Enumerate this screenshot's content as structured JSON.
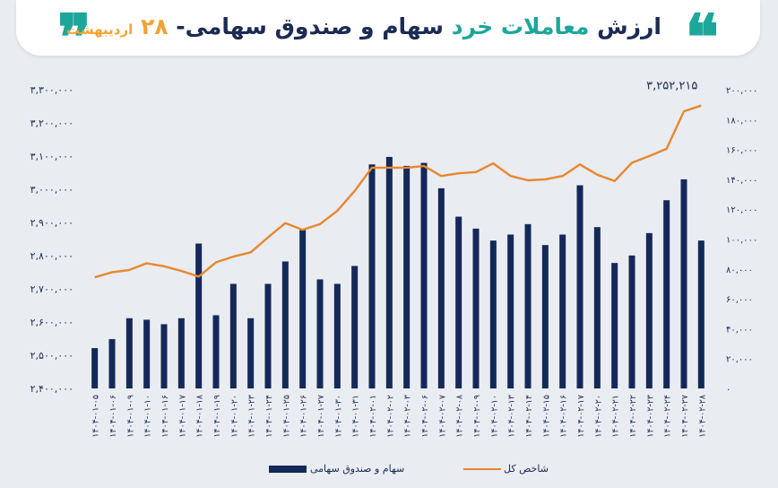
{
  "header": {
    "title_part1": "ارزش",
    "title_part2": "معاملات خرد",
    "title_part3": "سهام و صندوق سهامی-",
    "title_number": "۲۸",
    "title_month": "اردیبهشت"
  },
  "annotation": {
    "last_value": "۳,۲۵۲,۲۱۵"
  },
  "legend": {
    "bars": "سهام و صندوق سهامی",
    "line": "شاخص کل"
  },
  "colors": {
    "bars": "#14295a",
    "line": "#e8872e",
    "teal": "#1ca79a",
    "orange": "#f2a431",
    "navy": "#1c2b52"
  },
  "chart_data": {
    "type": "bar",
    "left_axis_ticks": [
      "۲,۴۰۰,۰۰۰",
      "۲,۵۰۰,۰۰۰",
      "۲,۶۰۰,۰۰۰",
      "۲,۷۰۰,۰۰۰",
      "۲,۸۰۰,۰۰۰",
      "۲,۹۰۰,۰۰۰",
      "۳,۰۰۰,۰۰۰",
      "۳,۱۰۰,۰۰۰",
      "۳,۲۰۰,۰۰۰",
      "۳,۳۰۰,۰۰۰"
    ],
    "left_ylim": [
      2400000,
      3300000
    ],
    "right_axis_ticks": [
      "۰",
      "۲۰,۰۰۰",
      "۴۰,۰۰۰",
      "۶۰,۰۰۰",
      "۸۰,۰۰۰",
      "۱۰۰,۰۰۰",
      "۱۲۰,۰۰۰",
      "۱۴۰,۰۰۰",
      "۱۶۰,۰۰۰",
      "۱۸۰,۰۰۰",
      "۲۰۰,۰۰۰"
    ],
    "right_ylim": [
      0,
      200000
    ],
    "categories": [
      "۱۴۰۴-۰۱-۰۵",
      "۱۴۰۴-۰۱-۰۶",
      "۱۴۰۴-۰۱-۰۹",
      "۱۴۰۴-۰۱-۱۰",
      "۱۴۰۴-۰۱-۱۶",
      "۱۴۰۴-۰۱-۱۷",
      "۱۴۰۴-۰۱-۱۸",
      "۱۴۰۴-۰۱-۱۹",
      "۱۴۰۴-۰۱-۲۰",
      "۱۴۰۴-۰۱-۲۳",
      "۱۴۰۴-۰۱-۲۴",
      "۱۴۰۴-۰۱-۲۵",
      "۱۴۰۴-۰۱-۲۶",
      "۱۴۰۴-۰۱-۲۷",
      "۱۴۰۴-۰۱-۳۰",
      "۱۴۰۴-۰۱-۳۱",
      "۱۴۰۴-۰۲-۰۱",
      "۱۴۰۴-۰۲-۰۲",
      "۱۴۰۴-۰۲-۰۳",
      "۱۴۰۴-۰۲-۰۶",
      "۱۴۰۴-۰۲-۰۷",
      "۱۴۰۴-۰۲-۰۸",
      "۱۴۰۴-۰۲-۰۹",
      "۱۴۰۴-۰۲-۱۰",
      "۱۴۰۴-۰۲-۱۳",
      "۱۴۰۴-۰۲-۱۴",
      "۱۴۰۴-۰۲-۱۵",
      "۱۴۰۴-۰۲-۱۶",
      "۱۴۰۴-۰۲-۱۷",
      "۱۴۰۴-۰۲-۲۰",
      "۱۴۰۴-۰۲-۲۱",
      "۱۴۰۴-۰۲-۲۲",
      "۱۴۰۴-۰۲-۲۳",
      "۱۴۰۴-۰۲-۲۴",
      "۱۴۰۴-۰۲-۲۷",
      "۱۴۰۴-۰۲-۲۸"
    ],
    "series": [
      {
        "name": "سهام و صندوق سهامی",
        "type": "bar",
        "axis": "right",
        "values": [
          27000,
          33000,
          47000,
          46000,
          43000,
          47000,
          97000,
          49000,
          70000,
          47000,
          70000,
          85000,
          106000,
          73000,
          70000,
          82000,
          150000,
          155000,
          149000,
          151000,
          134000,
          115000,
          107000,
          99000,
          103000,
          110000,
          96000,
          103000,
          136000,
          108000,
          84000,
          89000,
          104000,
          126000,
          140000,
          99000
        ]
      },
      {
        "name": "شاخص کل",
        "type": "line",
        "axis": "left",
        "values": [
          2735000,
          2750000,
          2757000,
          2777000,
          2768000,
          2754000,
          2737000,
          2780000,
          2797000,
          2810000,
          2855000,
          2898000,
          2878000,
          2895000,
          2935000,
          2995000,
          3065000,
          3065000,
          3065000,
          3070000,
          3040000,
          3048000,
          3052000,
          3078000,
          3040000,
          3027000,
          3030000,
          3040000,
          3075000,
          3044000,
          3025000,
          3080000,
          3100000,
          3122000,
          3235000,
          3252215
        ]
      }
    ]
  }
}
